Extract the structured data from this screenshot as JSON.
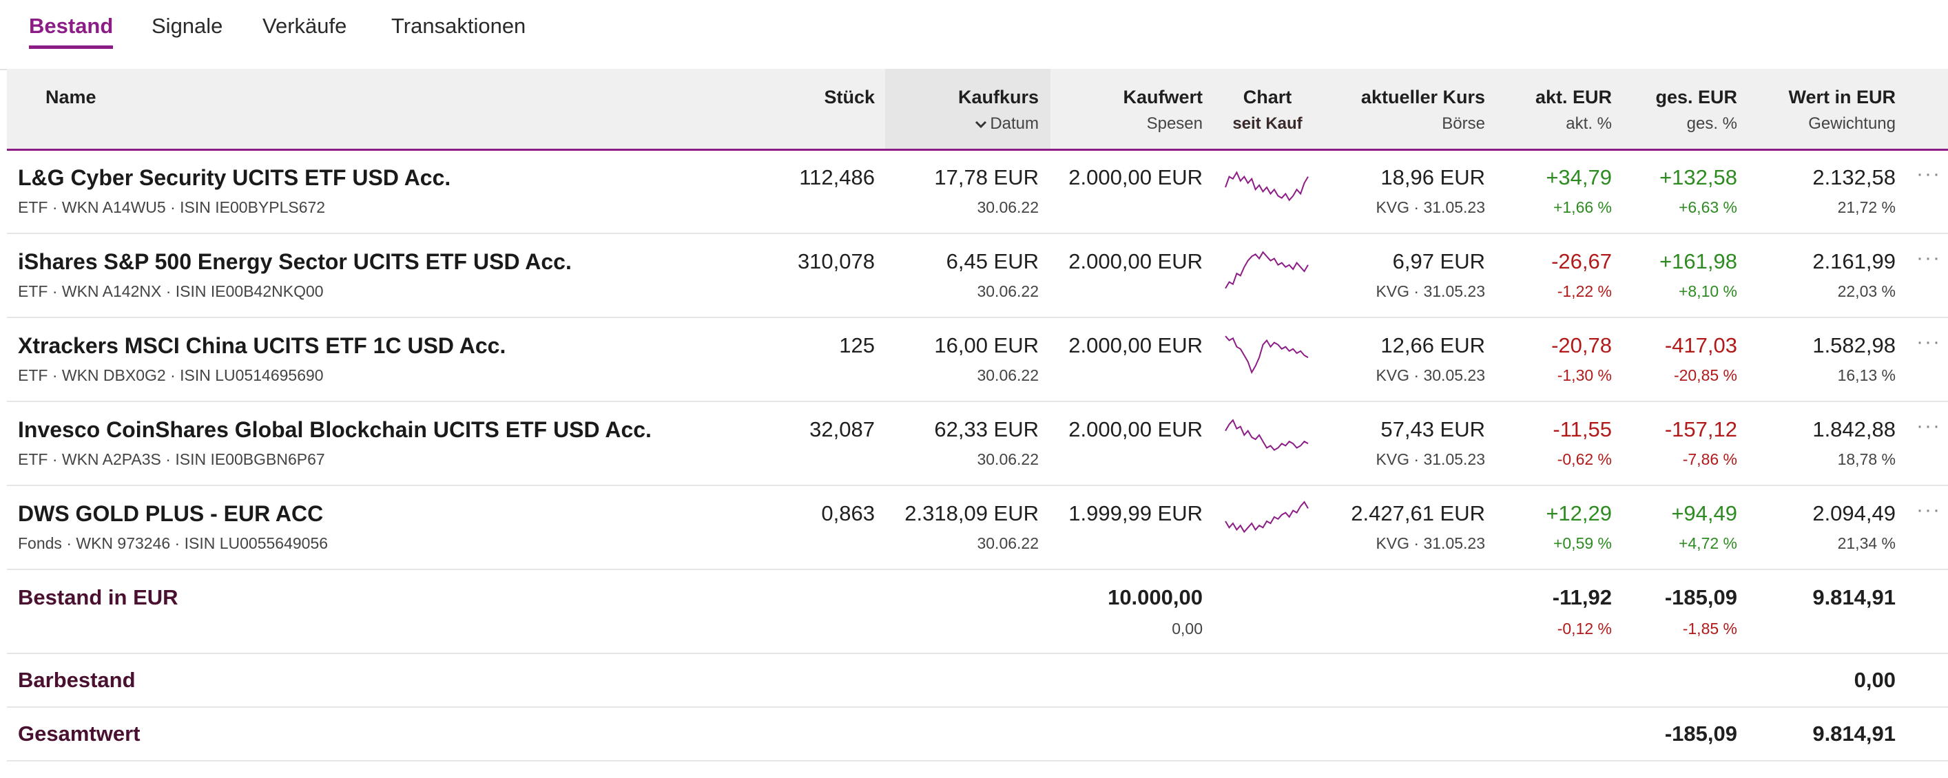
{
  "tabs": [
    {
      "label": "Bestand",
      "active": true
    },
    {
      "label": "Signale",
      "active": false
    },
    {
      "label": "Verkäufe",
      "active": false
    },
    {
      "label": "Transaktionen",
      "active": false
    }
  ],
  "header": {
    "name": "Name",
    "stueck": "Stück",
    "kaufkurs": "Kaufkurs",
    "datum": "Datum",
    "kaufwert": "Kaufwert",
    "spesen": "Spesen",
    "chart": "Chart",
    "seit_kauf": "seit Kauf",
    "aktueller_kurs": "aktueller Kurs",
    "boerse": "Börse",
    "akt_eur": "akt. EUR",
    "akt_pct": "akt. %",
    "ges_eur": "ges. EUR",
    "ges_pct": "ges. %",
    "wert_eur": "Wert in EUR",
    "gewichtung": "Gewichtung",
    "sort_icon": "chevron-down-icon"
  },
  "rows": [
    {
      "name": "L&G Cyber Security UCITS ETF USD Acc.",
      "meta": "ETF · WKN A14WU5 · ISIN IE00BYPLS672",
      "stueck": "112,486",
      "kaufkurs": "17,78 EUR",
      "datum": "30.06.22",
      "kaufwert": "2.000,00 EUR",
      "kurs": "18,96 EUR",
      "boerse": "KVG · 31.05.23",
      "akt_eur": "+34,79",
      "akt_pct": "+1,66 %",
      "akt_sign": "pos",
      "ges_eur": "+132,58",
      "ges_pct": "+6,63 %",
      "ges_sign": "pos",
      "wert": "2.132,58",
      "gewichtung": "21,72 %",
      "spark": [
        0.55,
        0.3,
        0.35,
        0.2,
        0.4,
        0.3,
        0.45,
        0.35,
        0.6,
        0.5,
        0.65,
        0.55,
        0.7,
        0.6,
        0.75,
        0.8,
        0.7,
        0.85,
        0.75,
        0.6,
        0.7,
        0.45,
        0.3
      ]
    },
    {
      "name": "iShares S&P 500 Energy Sector UCITS ETF USD Acc.",
      "meta": "ETF · WKN A142NX · ISIN IE00B42NKQ00",
      "stueck": "310,078",
      "kaufkurs": "6,45 EUR",
      "datum": "30.06.22",
      "kaufwert": "2.000,00 EUR",
      "kurs": "6,97 EUR",
      "boerse": "KVG · 31.05.23",
      "akt_eur": "-26,67",
      "akt_pct": "-1,22 %",
      "akt_sign": "neg",
      "ges_eur": "+161,98",
      "ges_pct": "+8,10 %",
      "ges_sign": "pos",
      "wert": "2.161,99",
      "gewichtung": "22,03 %",
      "spark": [
        0.95,
        0.8,
        0.85,
        0.6,
        0.65,
        0.45,
        0.3,
        0.2,
        0.15,
        0.25,
        0.1,
        0.2,
        0.3,
        0.25,
        0.4,
        0.35,
        0.45,
        0.4,
        0.5,
        0.35,
        0.45,
        0.55,
        0.4
      ]
    },
    {
      "name": "Xtrackers MSCI China UCITS ETF 1C USD Acc.",
      "meta": "ETF · WKN DBX0G2 · ISIN LU0514695690",
      "stueck": "125",
      "kaufkurs": "16,00 EUR",
      "datum": "30.06.22",
      "kaufwert": "2.000,00 EUR",
      "kurs": "12,66 EUR",
      "boerse": "KVG · 30.05.23",
      "akt_eur": "-20,78",
      "akt_pct": "-1,30 %",
      "akt_sign": "neg",
      "ges_eur": "-417,03",
      "ges_pct": "-20,85 %",
      "ges_sign": "neg",
      "wert": "1.582,98",
      "gewichtung": "16,13 %",
      "spark": [
        0.1,
        0.2,
        0.15,
        0.35,
        0.4,
        0.55,
        0.7,
        0.95,
        0.8,
        0.6,
        0.3,
        0.2,
        0.35,
        0.25,
        0.3,
        0.4,
        0.35,
        0.45,
        0.4,
        0.5,
        0.45,
        0.55,
        0.6
      ]
    },
    {
      "name": "Invesco CoinShares Global Blockchain UCITS ETF USD Acc.",
      "meta": "ETF · WKN A2PA3S · ISIN IE00BGBN6P67",
      "stueck": "32,087",
      "kaufkurs": "62,33 EUR",
      "datum": "30.06.22",
      "kaufwert": "2.000,00 EUR",
      "kurs": "57,43 EUR",
      "boerse": "KVG · 31.05.23",
      "akt_eur": "-11,55",
      "akt_pct": "-0,62 %",
      "akt_sign": "neg",
      "ges_eur": "-157,12",
      "ges_pct": "-7,86 %",
      "ges_sign": "neg",
      "wert": "1.842,88",
      "gewichtung": "18,78 %",
      "spark": [
        0.35,
        0.2,
        0.1,
        0.3,
        0.25,
        0.45,
        0.35,
        0.5,
        0.55,
        0.45,
        0.6,
        0.75,
        0.7,
        0.8,
        0.75,
        0.65,
        0.7,
        0.6,
        0.65,
        0.75,
        0.7,
        0.6,
        0.65
      ]
    },
    {
      "name": "DWS GOLD PLUS - EUR ACC",
      "meta": "Fonds · WKN 973246 · ISIN LU0055649056",
      "stueck": "0,863",
      "kaufkurs": "2.318,09 EUR",
      "datum": "30.06.22",
      "kaufwert": "1.999,99 EUR",
      "kurs": "2.427,61 EUR",
      "boerse": "KVG · 31.05.23",
      "akt_eur": "+12,29",
      "akt_pct": "+0,59 %",
      "akt_sign": "pos",
      "ges_eur": "+94,49",
      "ges_pct": "+4,72 %",
      "ges_sign": "pos",
      "wert": "2.094,49",
      "gewichtung": "21,34 %",
      "spark": [
        0.5,
        0.65,
        0.55,
        0.7,
        0.6,
        0.75,
        0.65,
        0.55,
        0.7,
        0.6,
        0.65,
        0.5,
        0.55,
        0.4,
        0.45,
        0.35,
        0.3,
        0.4,
        0.25,
        0.3,
        0.15,
        0.05,
        0.2
      ]
    }
  ],
  "summary": {
    "bestand_label": "Bestand in EUR",
    "bestand_kaufwert": "10.000,00",
    "bestand_spesen": "0,00",
    "bestand_akt_eur": "-11,92",
    "bestand_akt_pct": "-0,12 %",
    "bestand_ges_eur": "-185,09",
    "bestand_ges_pct": "-1,85 %",
    "bestand_wert": "9.814,91",
    "bar_label": "Barbestand",
    "bar_wert": "0,00",
    "gesamt_label": "Gesamtwert",
    "gesamt_ges_eur": "-185,09",
    "gesamt_wert": "9.814,91"
  },
  "colors": {
    "accent": "#8c1c86",
    "positive": "#2e8b22",
    "negative": "#b21a1a",
    "sparkline": "#8c1c86"
  }
}
